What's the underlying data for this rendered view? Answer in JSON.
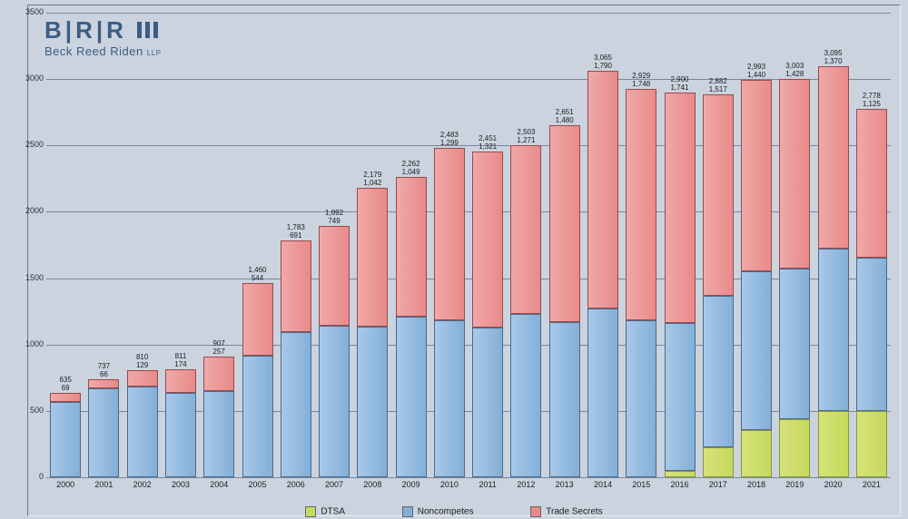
{
  "logo": {
    "letters": [
      "B",
      "R",
      "R"
    ],
    "sub": "Beck Reed Riden",
    "suffix": "LLP"
  },
  "chart": {
    "type": "stacked-bar",
    "background_color": "#cdd4e0",
    "plot_area_color": "#cbd3df",
    "grid_color": "#7a879a",
    "ylim": [
      0,
      3500
    ],
    "ytick_step": 500,
    "yticks": [
      0,
      500,
      1000,
      1500,
      2000,
      2500,
      3000,
      3500
    ],
    "label_fontsize": 9,
    "value_fontsize": 8,
    "series": [
      {
        "key": "dtsa",
        "label": "DTSA",
        "color": "#c5d95c",
        "border": "#8a9a3a"
      },
      {
        "key": "noncompetes",
        "label": "Noncompetes",
        "color": "#84afd8",
        "border": "#4a6a8a"
      },
      {
        "key": "tradesecrets",
        "label": "Trade Secrets",
        "color": "#e88a8a",
        "border": "#9a4a4a"
      }
    ],
    "categories": [
      "2000",
      "2001",
      "2002",
      "2003",
      "2004",
      "2005",
      "2006",
      "2007",
      "2008",
      "2009",
      "2010",
      "2011",
      "2012",
      "2013",
      "2014",
      "2015",
      "2016",
      "2017",
      "2018",
      "2019",
      "2020",
      "2021"
    ],
    "data": [
      {
        "total": 635,
        "dtsa": 0,
        "noncompetes": 566,
        "tradesecrets": 69
      },
      {
        "total": 737,
        "dtsa": 0,
        "noncompetes": 671,
        "tradesecrets": 66
      },
      {
        "total": 810,
        "dtsa": 0,
        "noncompetes": 681,
        "tradesecrets": 129
      },
      {
        "total": 811,
        "dtsa": 0,
        "noncompetes": 637,
        "tradesecrets": 174
      },
      {
        "total": 907,
        "dtsa": 0,
        "noncompetes": 650,
        "tradesecrets": 257
      },
      {
        "total": 1460,
        "dtsa": 0,
        "noncompetes": 916,
        "tradesecrets": 544
      },
      {
        "total": 1783,
        "dtsa": 0,
        "noncompetes": 1092,
        "tradesecrets": 691
      },
      {
        "total": 1892,
        "dtsa": 0,
        "noncompetes": 1143,
        "tradesecrets": 749
      },
      {
        "total": 2179,
        "dtsa": 0,
        "noncompetes": 1137,
        "tradesecrets": 1042
      },
      {
        "total": 2262,
        "dtsa": 0,
        "noncompetes": 1213,
        "tradesecrets": 1049
      },
      {
        "total": 2483,
        "dtsa": 0,
        "noncompetes": 1184,
        "tradesecrets": 1299
      },
      {
        "total": 2451,
        "dtsa": 0,
        "noncompetes": 1130,
        "tradesecrets": 1321
      },
      {
        "total": 2503,
        "dtsa": 0,
        "noncompetes": 1232,
        "tradesecrets": 1271
      },
      {
        "total": 2651,
        "dtsa": 0,
        "noncompetes": 1171,
        "tradesecrets": 1480
      },
      {
        "total": 3065,
        "dtsa": 0,
        "noncompetes": 1275,
        "tradesecrets": 1790
      },
      {
        "total": 2929,
        "dtsa": 0,
        "noncompetes": 1181,
        "tradesecrets": 1748
      },
      {
        "total": 2900,
        "dtsa": 49,
        "noncompetes": 1110,
        "tradesecrets": 1741
      },
      {
        "total": 2882,
        "dtsa": 224,
        "noncompetes": 1141,
        "tradesecrets": 1517
      },
      {
        "total": 2993,
        "dtsa": 354,
        "noncompetes": 1199,
        "tradesecrets": 1440
      },
      {
        "total": 3003,
        "dtsa": 441,
        "noncompetes": 1134,
        "tradesecrets": 1428
      },
      {
        "total": 3095,
        "dtsa": 501,
        "noncompetes": 1224,
        "tradesecrets": 1370
      },
      {
        "total": 2778,
        "dtsa": 502,
        "noncompetes": 1151,
        "tradesecrets": 1125
      }
    ]
  },
  "legend": {
    "items": [
      "DTSA",
      "Noncompetes",
      "Trade Secrets"
    ]
  }
}
